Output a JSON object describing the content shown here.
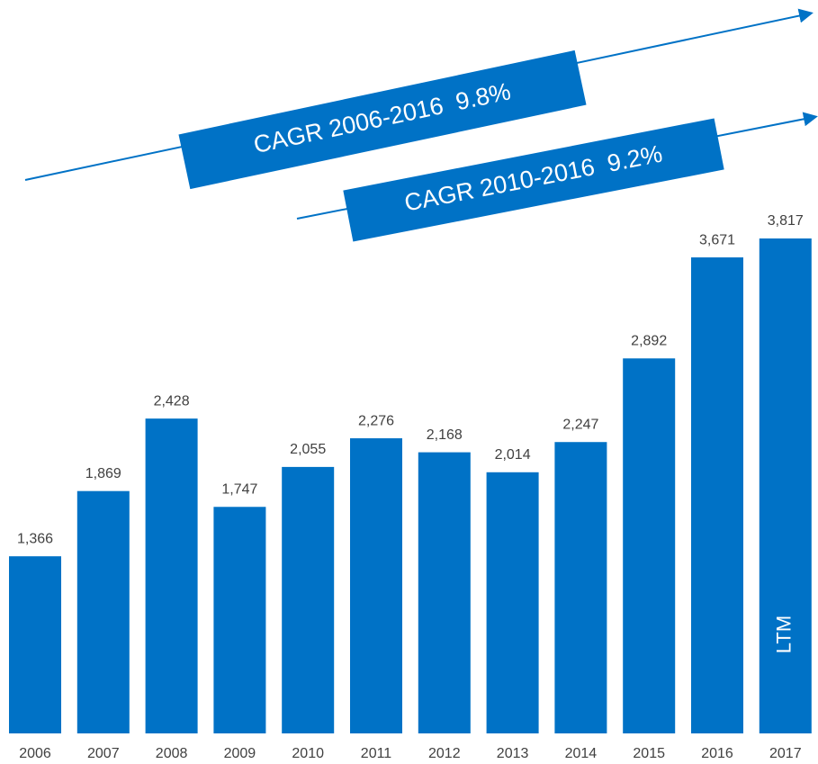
{
  "chart_data": {
    "type": "bar",
    "categories": [
      "2006",
      "2007",
      "2008",
      "2009",
      "2010",
      "2011",
      "2012",
      "2013",
      "2014",
      "2015",
      "2016",
      "2017"
    ],
    "values": [
      1366,
      1869,
      2428,
      1747,
      2055,
      2276,
      2168,
      2014,
      2247,
      2892,
      3671,
      3817
    ],
    "value_labels": [
      "1,366",
      "1,869",
      "2,428",
      "1,747",
      "2,055",
      "2,276",
      "2,168",
      "2,014",
      "2,247",
      "2,892",
      "3,671",
      "3,817"
    ],
    "color": "#0072c6",
    "annotations": [
      "CAGR 2006-2016  9.8%",
      "CAGR 2010-2016  9.2%",
      "LTM"
    ]
  }
}
